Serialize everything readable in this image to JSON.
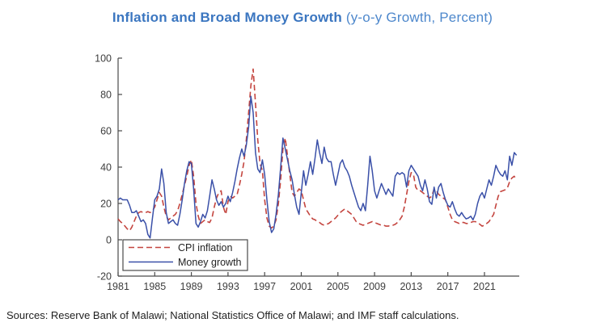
{
  "title": {
    "main": "Inflation and Broad Money Growth",
    "subtitle": " (y-o-y Growth, Percent)"
  },
  "source_note": "Sources: Reserve Bank of Malawi; National Statistics Office of Malawi; and IMF staff calculations.",
  "colors": {
    "title_main": "#3B76C0",
    "title_subtitle": "#4E88CC",
    "cpi_line": "#C4453F",
    "money_line": "#3A50A8",
    "axis": "#4A4A4A",
    "tick_text": "#3D3D3D",
    "legend_border": "#4A4A4A",
    "legend_text": "#222222"
  },
  "chart_data": {
    "type": "line",
    "title": "Inflation and Broad Money Growth (y-o-y Growth, Percent)",
    "xlabel": "",
    "ylabel": "",
    "grid": false,
    "x_axis": {
      "min": 1981,
      "max": 2024.8,
      "tick_labels": [
        1981,
        1985,
        1989,
        1993,
        1997,
        2001,
        2005,
        2009,
        2013,
        2017,
        2021
      ]
    },
    "y_axis": {
      "min": -20,
      "max": 100,
      "tick_labels": [
        -20,
        0,
        20,
        40,
        60,
        80,
        100
      ]
    },
    "x_start": 1981,
    "x_step": 0.25,
    "x_end": 2024.5,
    "legend": {
      "position": "bottom-left",
      "entries": [
        {
          "label": "CPI inflation",
          "style": "dashed",
          "color": "#C4453F"
        },
        {
          "label": "Money growth",
          "style": "solid",
          "color": "#3A50A8"
        }
      ]
    },
    "series": [
      {
        "name": "CPI inflation",
        "values": [
          11.5,
          10,
          9,
          7.5,
          6,
          5,
          7,
          10,
          13,
          15,
          15.5,
          15,
          15,
          15.5,
          15,
          16,
          18,
          22,
          26,
          24,
          18,
          13,
          11,
          12,
          13,
          14,
          16,
          20,
          25,
          30,
          35,
          41,
          44,
          35,
          20,
          13,
          9,
          10,
          11,
          10,
          9.5,
          12,
          18,
          23,
          26,
          27,
          18,
          14,
          21,
          24,
          23,
          24,
          25,
          30,
          36,
          43,
          55,
          70,
          85,
          94,
          75,
          55,
          42,
          38,
          22,
          12,
          7.5,
          6.5,
          7.5,
          11,
          20,
          33,
          50,
          56,
          46,
          36,
          26,
          24,
          26,
          28,
          27,
          22,
          17,
          15,
          13,
          11.5,
          11,
          10,
          9.5,
          8.5,
          8,
          8.5,
          9,
          10,
          11,
          12,
          13.5,
          15,
          16,
          17,
          16,
          15,
          14,
          12,
          10,
          9,
          8.5,
          8,
          8.5,
          9,
          9.5,
          10,
          9.5,
          9,
          8.5,
          8,
          8,
          7.5,
          7.5,
          8,
          8,
          8.5,
          9.5,
          11,
          13,
          18,
          25,
          32,
          37,
          36,
          29,
          27,
          27,
          26,
          25,
          24,
          23,
          24,
          28,
          27,
          25,
          24,
          23,
          22,
          18,
          14,
          11,
          10,
          9.5,
          9,
          9.5,
          9.5,
          9,
          9,
          9.5,
          10,
          10,
          9.5,
          8.5,
          7.5,
          8,
          9,
          10,
          12,
          14,
          19,
          24,
          26.5,
          27,
          27.5,
          28.5,
          32,
          34,
          35,
          33
        ]
      },
      {
        "name": "Money growth",
        "values": [
          22,
          23,
          22,
          22,
          22,
          19,
          15,
          15,
          16,
          13,
          10,
          11,
          9,
          3,
          1,
          12,
          22,
          24,
          28,
          39,
          31,
          15,
          9,
          10,
          11,
          9,
          8,
          14,
          22,
          31,
          38,
          43,
          42,
          28,
          9,
          7,
          10,
          14,
          12,
          16,
          24,
          33,
          28,
          22,
          19,
          21,
          18,
          20,
          24,
          21,
          26,
          32,
          39,
          45,
          50,
          46,
          52,
          62,
          79,
          70,
          48,
          39,
          37,
          44,
          36,
          22,
          10,
          4,
          6,
          14,
          25,
          40,
          56,
          50,
          44,
          38,
          33,
          25,
          18,
          14,
          26,
          38,
          30,
          36,
          43,
          36,
          45,
          55,
          48,
          42,
          51,
          45,
          43,
          43,
          36,
          30,
          36,
          42,
          44,
          40,
          38,
          35,
          30,
          26,
          22,
          18,
          16,
          20,
          16,
          30,
          46,
          38,
          27,
          23,
          27,
          31,
          28,
          25,
          28,
          26,
          24,
          35,
          37,
          36,
          37,
          36,
          29,
          38,
          41,
          39,
          37,
          35,
          30,
          27,
          33,
          28,
          21,
          19.5,
          29,
          23,
          29,
          31,
          26,
          22,
          19,
          18,
          21,
          17,
          14,
          13,
          15,
          13,
          11.5,
          12,
          13,
          11,
          14,
          20,
          24,
          26,
          23,
          28,
          33,
          30,
          35,
          41,
          38,
          36,
          35,
          38,
          33,
          46,
          41,
          48,
          46.5
        ]
      }
    ]
  }
}
